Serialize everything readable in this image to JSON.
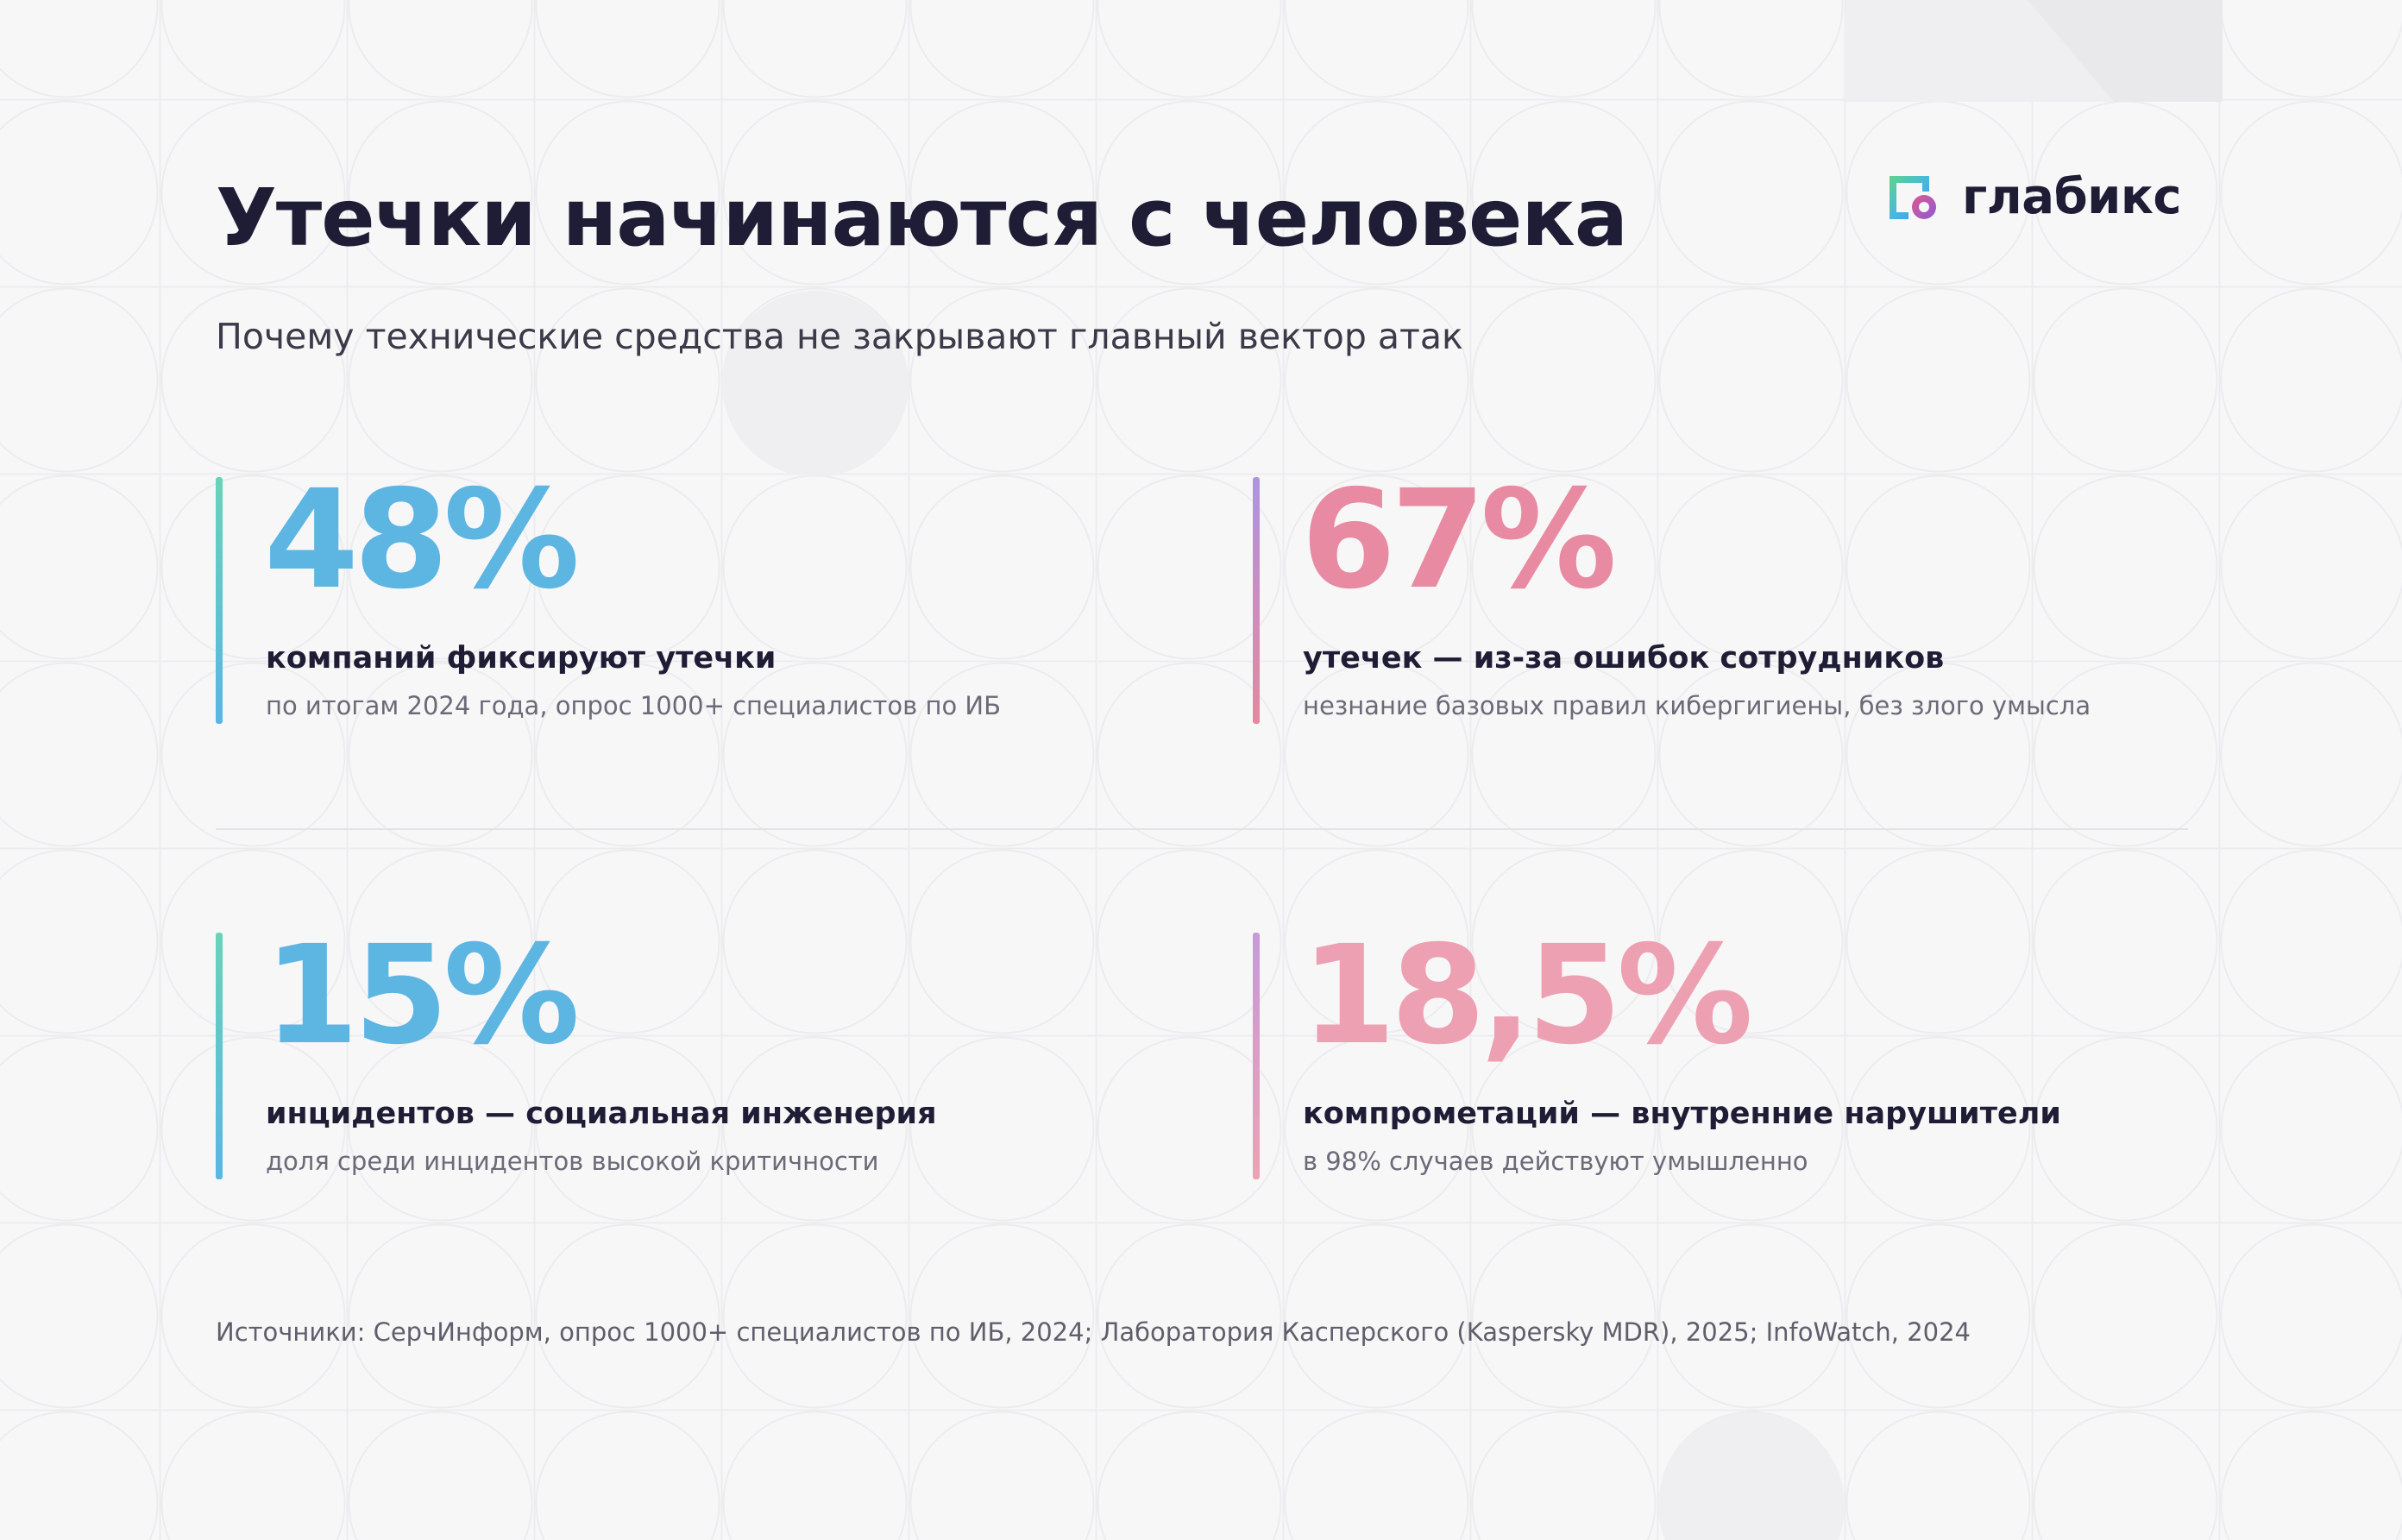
{
  "header": {
    "title": "Утечки начинаются с человека",
    "subtitle": "Почему технические средства не закрывают главный вектор атак"
  },
  "logo": {
    "text": "глабикс",
    "icon": "glabix-logo-icon"
  },
  "stats": [
    {
      "value": "48%",
      "label": "компаний фиксируют утечки",
      "note": "по итогам 2024 года, опрос 1000+ специалистов по ИБ",
      "color": "#5db5e2"
    },
    {
      "value": "67%",
      "label": "утечек — из-за ошибок сотрудников",
      "note": "незнание базовых правил кибергигиены, без злого умысла",
      "color": "#e88ba2"
    },
    {
      "value": "15%",
      "label": "инцидентов — социальная инженерия",
      "note": "доля среди инцидентов высокой критичности",
      "color": "#5db5e2"
    },
    {
      "value": "18,5%",
      "label": "компрометаций — внутренние нарушители",
      "note": "в 98% случаев действуют умышленно",
      "color": "#eea0b3"
    }
  ],
  "footer": {
    "sources": "Источники: СерчИнформ, опрос 1000+ специалистов по ИБ, 2024; Лаборатория Касперского (Kaspersky MDR), 2025; InfoWatch, 2024"
  }
}
